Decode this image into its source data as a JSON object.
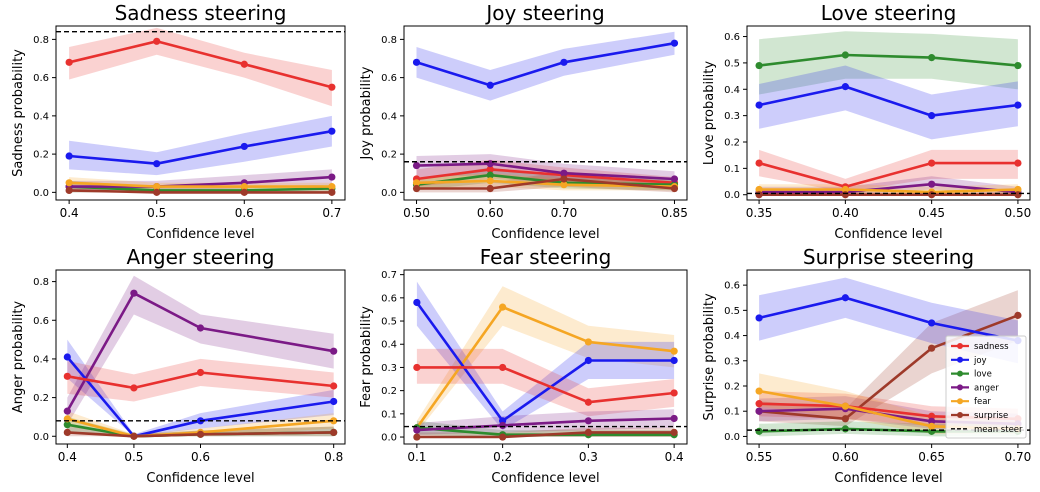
{
  "legend": {
    "entries": [
      {
        "key": "sadness",
        "label": "sadness",
        "color": "#e8312f"
      },
      {
        "key": "joy",
        "label": "joy",
        "color": "#1a1aee"
      },
      {
        "key": "love",
        "label": "love",
        "color": "#2e8b2e"
      },
      {
        "key": "anger",
        "label": "anger",
        "color": "#7b1a86"
      },
      {
        "key": "fear",
        "label": "fear",
        "color": "#f5a623"
      },
      {
        "key": "surprise",
        "label": "surprise",
        "color": "#9e3a2a"
      },
      {
        "key": "mean",
        "label": "mean steer",
        "color": "#000000",
        "style": "dashed"
      }
    ]
  },
  "chart_data": [
    {
      "type": "line",
      "title": "Sadness steering",
      "xlabel": "Confidence level",
      "ylabel": "Sadness probability",
      "x": [
        0.4,
        0.5,
        0.6,
        0.7
      ],
      "xticks": [
        "0.4",
        "0.5",
        "0.6",
        "0.7"
      ],
      "xlim": [
        0.385,
        0.715
      ],
      "ylim": [
        -0.04,
        0.87
      ],
      "yticks": [
        "0.0",
        "0.2",
        "0.4",
        "0.6",
        "0.8"
      ],
      "mean_steer": 0.84,
      "series": [
        {
          "key": "sadness",
          "values": [
            0.68,
            0.79,
            0.67,
            0.55
          ],
          "lower": [
            0.59,
            0.72,
            0.6,
            0.45
          ],
          "upper": [
            0.76,
            0.86,
            0.73,
            0.64
          ]
        },
        {
          "key": "joy",
          "values": [
            0.19,
            0.15,
            0.24,
            0.32
          ],
          "lower": [
            0.12,
            0.09,
            0.16,
            0.24
          ],
          "upper": [
            0.27,
            0.21,
            0.31,
            0.4
          ]
        },
        {
          "key": "love",
          "values": [
            0.03,
            0.01,
            0.01,
            0.02
          ],
          "lower": [
            0.0,
            0.0,
            0.0,
            0.0
          ],
          "upper": [
            0.06,
            0.03,
            0.03,
            0.04
          ]
        },
        {
          "key": "anger",
          "values": [
            0.03,
            0.03,
            0.05,
            0.08
          ],
          "lower": [
            0.01,
            0.01,
            0.02,
            0.04
          ],
          "upper": [
            0.06,
            0.06,
            0.09,
            0.12
          ]
        },
        {
          "key": "fear",
          "values": [
            0.05,
            0.03,
            0.03,
            0.03
          ],
          "lower": [
            0.02,
            0.01,
            0.01,
            0.01
          ],
          "upper": [
            0.08,
            0.05,
            0.05,
            0.05
          ]
        },
        {
          "key": "surprise",
          "values": [
            0.01,
            0.0,
            0.0,
            0.0
          ],
          "lower": [
            0.0,
            0.0,
            0.0,
            0.0
          ],
          "upper": [
            0.03,
            0.01,
            0.01,
            0.01
          ]
        }
      ]
    },
    {
      "type": "line",
      "title": "Joy steering",
      "xlabel": "Confidence level",
      "ylabel": "Joy probability",
      "x": [
        0.5,
        0.6,
        0.7,
        0.85
      ],
      "xticks": [
        "0.50",
        "0.60",
        "0.70",
        "0.85"
      ],
      "xlim": [
        0.483,
        0.867
      ],
      "ylim": [
        -0.04,
        0.87
      ],
      "yticks": [
        "0.0",
        "0.2",
        "0.4",
        "0.6",
        "0.8"
      ],
      "mean_steer": 0.16,
      "series": [
        {
          "key": "joy",
          "values": [
            0.68,
            0.56,
            0.68,
            0.78
          ],
          "lower": [
            0.6,
            0.48,
            0.61,
            0.72
          ],
          "upper": [
            0.76,
            0.64,
            0.75,
            0.84
          ]
        },
        {
          "key": "sadness",
          "values": [
            0.07,
            0.12,
            0.09,
            0.05
          ],
          "lower": [
            0.03,
            0.07,
            0.05,
            0.02
          ],
          "upper": [
            0.12,
            0.17,
            0.13,
            0.08
          ]
        },
        {
          "key": "love",
          "values": [
            0.04,
            0.09,
            0.05,
            0.04
          ],
          "lower": [
            0.01,
            0.05,
            0.02,
            0.01
          ],
          "upper": [
            0.07,
            0.13,
            0.08,
            0.07
          ]
        },
        {
          "key": "anger",
          "values": [
            0.14,
            0.15,
            0.1,
            0.07
          ],
          "lower": [
            0.08,
            0.09,
            0.05,
            0.03
          ],
          "upper": [
            0.19,
            0.2,
            0.15,
            0.11
          ]
        },
        {
          "key": "fear",
          "values": [
            0.05,
            0.06,
            0.04,
            0.03
          ],
          "lower": [
            0.02,
            0.03,
            0.01,
            0.01
          ],
          "upper": [
            0.08,
            0.1,
            0.07,
            0.06
          ]
        },
        {
          "key": "surprise",
          "values": [
            0.02,
            0.02,
            0.07,
            0.02
          ],
          "lower": [
            0.0,
            0.0,
            0.03,
            0.0
          ],
          "upper": [
            0.05,
            0.05,
            0.11,
            0.05
          ]
        }
      ]
    },
    {
      "type": "line",
      "title": "Love steering",
      "xlabel": "Confidence level",
      "ylabel": "Love probability",
      "x": [
        0.35,
        0.4,
        0.45,
        0.5
      ],
      "xticks": [
        "0.35",
        "0.40",
        "0.45",
        "0.50"
      ],
      "xlim": [
        0.343,
        0.507
      ],
      "ylim": [
        -0.02,
        0.64
      ],
      "yticks": [
        "0.0",
        "0.1",
        "0.2",
        "0.3",
        "0.4",
        "0.5",
        "0.6"
      ],
      "mean_steer": 0.005,
      "series": [
        {
          "key": "love",
          "values": [
            0.49,
            0.53,
            0.52,
            0.49
          ],
          "lower": [
            0.38,
            0.44,
            0.44,
            0.4
          ],
          "upper": [
            0.59,
            0.62,
            0.61,
            0.59
          ]
        },
        {
          "key": "joy",
          "values": [
            0.34,
            0.41,
            0.3,
            0.34
          ],
          "lower": [
            0.25,
            0.32,
            0.21,
            0.26
          ],
          "upper": [
            0.42,
            0.49,
            0.38,
            0.43
          ]
        },
        {
          "key": "sadness",
          "values": [
            0.12,
            0.03,
            0.12,
            0.12
          ],
          "lower": [
            0.07,
            0.01,
            0.06,
            0.06
          ],
          "upper": [
            0.17,
            0.06,
            0.17,
            0.17
          ]
        },
        {
          "key": "anger",
          "values": [
            0.01,
            0.01,
            0.04,
            0.01
          ],
          "lower": [
            0.0,
            0.0,
            0.02,
            0.0
          ],
          "upper": [
            0.03,
            0.03,
            0.07,
            0.03
          ]
        },
        {
          "key": "fear",
          "values": [
            0.02,
            0.02,
            0.01,
            0.02
          ],
          "lower": [
            0.0,
            0.0,
            0.0,
            0.0
          ],
          "upper": [
            0.04,
            0.04,
            0.03,
            0.04
          ]
        },
        {
          "key": "surprise",
          "values": [
            0.0,
            0.0,
            0.0,
            0.0
          ],
          "lower": [
            0.0,
            0.0,
            0.0,
            0.0
          ],
          "upper": [
            0.01,
            0.01,
            0.01,
            0.01
          ]
        }
      ]
    },
    {
      "type": "line",
      "title": "Anger steering",
      "xlabel": "Confidence level",
      "ylabel": "Anger probability",
      "x": [
        0.4,
        0.5,
        0.6,
        0.8
      ],
      "xticks": [
        "0.4",
        "0.5",
        "0.6",
        "0.8"
      ],
      "xlim": [
        0.383,
        0.817
      ],
      "ylim": [
        -0.04,
        0.86
      ],
      "yticks": [
        "0.0",
        "0.2",
        "0.4",
        "0.6",
        "0.8"
      ],
      "mean_steer": 0.08,
      "series": [
        {
          "key": "anger",
          "values": [
            0.13,
            0.74,
            0.56,
            0.44
          ],
          "lower": [
            0.06,
            0.63,
            0.48,
            0.35
          ],
          "upper": [
            0.2,
            0.83,
            0.63,
            0.53
          ]
        },
        {
          "key": "joy",
          "values": [
            0.41,
            0.0,
            0.08,
            0.18
          ],
          "lower": [
            0.3,
            0.0,
            0.04,
            0.11
          ],
          "upper": [
            0.5,
            0.01,
            0.12,
            0.24
          ]
        },
        {
          "key": "sadness",
          "values": [
            0.31,
            0.25,
            0.33,
            0.26
          ],
          "lower": [
            0.22,
            0.18,
            0.26,
            0.2
          ],
          "upper": [
            0.39,
            0.32,
            0.4,
            0.33
          ]
        },
        {
          "key": "love",
          "values": [
            0.06,
            0.0,
            0.01,
            0.02
          ],
          "lower": [
            0.02,
            0.0,
            0.0,
            0.0
          ],
          "upper": [
            0.1,
            0.01,
            0.03,
            0.05
          ]
        },
        {
          "key": "fear",
          "values": [
            0.09,
            0.0,
            0.02,
            0.08
          ],
          "lower": [
            0.05,
            0.0,
            0.0,
            0.04
          ],
          "upper": [
            0.13,
            0.01,
            0.04,
            0.12
          ]
        },
        {
          "key": "surprise",
          "values": [
            0.02,
            0.0,
            0.01,
            0.02
          ],
          "lower": [
            0.0,
            0.0,
            0.0,
            0.0
          ],
          "upper": [
            0.05,
            0.01,
            0.03,
            0.05
          ]
        }
      ]
    },
    {
      "type": "line",
      "title": "Fear steering",
      "xlabel": "Confidence level",
      "ylabel": "Fear probability",
      "x": [
        0.1,
        0.2,
        0.3,
        0.4
      ],
      "xticks": [
        "0.1",
        "0.2",
        "0.3",
        "0.4"
      ],
      "xlim": [
        0.085,
        0.415
      ],
      "ylim": [
        -0.03,
        0.72
      ],
      "yticks": [
        "0.0",
        "0.1",
        "0.2",
        "0.3",
        "0.4",
        "0.5",
        "0.6",
        "0.7"
      ],
      "mean_steer": 0.045,
      "series": [
        {
          "key": "fear",
          "values": [
            0.04,
            0.56,
            0.41,
            0.37
          ],
          "lower": [
            0.02,
            0.48,
            0.34,
            0.3
          ],
          "upper": [
            0.07,
            0.65,
            0.48,
            0.44
          ]
        },
        {
          "key": "joy",
          "values": [
            0.58,
            0.07,
            0.33,
            0.33
          ],
          "lower": [
            0.48,
            0.03,
            0.25,
            0.25
          ],
          "upper": [
            0.67,
            0.11,
            0.41,
            0.41
          ]
        },
        {
          "key": "sadness",
          "values": [
            0.3,
            0.3,
            0.15,
            0.19
          ],
          "lower": [
            0.23,
            0.23,
            0.09,
            0.13
          ],
          "upper": [
            0.38,
            0.38,
            0.21,
            0.25
          ]
        },
        {
          "key": "love",
          "values": [
            0.04,
            0.01,
            0.01,
            0.01
          ],
          "lower": [
            0.01,
            0.0,
            0.0,
            0.0
          ],
          "upper": [
            0.07,
            0.03,
            0.03,
            0.03
          ]
        },
        {
          "key": "anger",
          "values": [
            0.03,
            0.05,
            0.07,
            0.08
          ],
          "lower": [
            0.01,
            0.02,
            0.03,
            0.04
          ],
          "upper": [
            0.06,
            0.09,
            0.11,
            0.12
          ]
        },
        {
          "key": "surprise",
          "values": [
            0.0,
            0.0,
            0.02,
            0.02
          ],
          "lower": [
            0.0,
            0.0,
            0.0,
            0.0
          ],
          "upper": [
            0.02,
            0.02,
            0.04,
            0.04
          ]
        }
      ]
    },
    {
      "type": "line",
      "title": "Surprise steering",
      "xlabel": "Confidence level",
      "ylabel": "Surprise probability",
      "x": [
        0.55,
        0.6,
        0.65,
        0.7
      ],
      "xticks": [
        "0.55",
        "0.60",
        "0.65",
        "0.70"
      ],
      "xlim": [
        0.543,
        0.707
      ],
      "ylim": [
        -0.03,
        0.66
      ],
      "yticks": [
        "0.0",
        "0.1",
        "0.2",
        "0.3",
        "0.4",
        "0.5",
        "0.6"
      ],
      "mean_steer": 0.025,
      "legend_placement": "lower right",
      "series": [
        {
          "key": "surprise",
          "values": [
            0.1,
            0.07,
            0.35,
            0.48
          ],
          "lower": [
            0.06,
            0.04,
            0.25,
            0.38
          ],
          "upper": [
            0.14,
            0.11,
            0.45,
            0.58
          ]
        },
        {
          "key": "joy",
          "values": [
            0.47,
            0.55,
            0.45,
            0.38
          ],
          "lower": [
            0.38,
            0.47,
            0.37,
            0.29
          ],
          "upper": [
            0.56,
            0.63,
            0.53,
            0.46
          ]
        },
        {
          "key": "sadness",
          "values": [
            0.13,
            0.12,
            0.08,
            0.07
          ],
          "lower": [
            0.08,
            0.07,
            0.04,
            0.03
          ],
          "upper": [
            0.18,
            0.17,
            0.12,
            0.11
          ]
        },
        {
          "key": "love",
          "values": [
            0.02,
            0.03,
            0.02,
            0.02
          ],
          "lower": [
            0.0,
            0.01,
            0.0,
            0.0
          ],
          "upper": [
            0.05,
            0.06,
            0.05,
            0.05
          ]
        },
        {
          "key": "anger",
          "values": [
            0.1,
            0.11,
            0.06,
            0.05
          ],
          "lower": [
            0.06,
            0.07,
            0.03,
            0.02
          ],
          "upper": [
            0.15,
            0.16,
            0.1,
            0.09
          ]
        },
        {
          "key": "fear",
          "values": [
            0.18,
            0.12,
            0.04,
            0.03
          ],
          "lower": [
            0.12,
            0.07,
            0.01,
            0.01
          ],
          "upper": [
            0.25,
            0.18,
            0.08,
            0.06
          ]
        }
      ]
    }
  ]
}
